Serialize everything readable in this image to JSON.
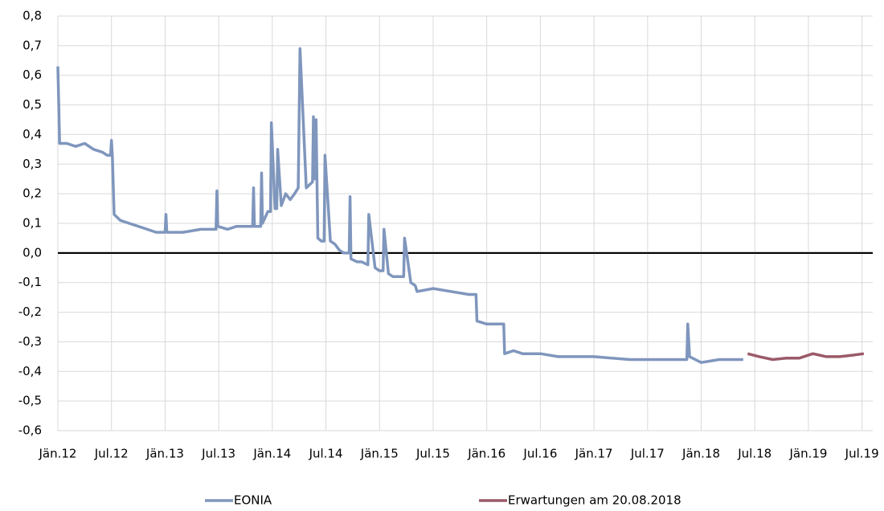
{
  "chart_data": {
    "type": "line",
    "xlim": [
      0,
      91.2
    ],
    "xticks": [
      {
        "value": 0,
        "label": "Jän.12"
      },
      {
        "value": 6,
        "label": "Jul.12"
      },
      {
        "value": 12,
        "label": "Jän.13"
      },
      {
        "value": 18,
        "label": "Jul.13"
      },
      {
        "value": 24,
        "label": "Jän.14"
      },
      {
        "value": 30,
        "label": "Jul.14"
      },
      {
        "value": 36,
        "label": "Jän.15"
      },
      {
        "value": 42,
        "label": "Jul.15"
      },
      {
        "value": 48,
        "label": "Jän.16"
      },
      {
        "value": 54,
        "label": "Jul.16"
      },
      {
        "value": 60,
        "label": "Jän.17"
      },
      {
        "value": 66,
        "label": "Jul.17"
      },
      {
        "value": 72,
        "label": "Jän.18"
      },
      {
        "value": 78,
        "label": "Jul.18"
      },
      {
        "value": 84,
        "label": "Jän.19"
      },
      {
        "value": 90,
        "label": "Jul.19"
      }
    ],
    "ylim": [
      -0.6,
      0.8
    ],
    "yticks": [
      {
        "value": 0.8,
        "label": "0,8"
      },
      {
        "value": 0.7,
        "label": "0,7"
      },
      {
        "value": 0.6,
        "label": "0,6"
      },
      {
        "value": 0.5,
        "label": "0,5"
      },
      {
        "value": 0.4,
        "label": "0,4"
      },
      {
        "value": 0.3,
        "label": "0,3"
      },
      {
        "value": 0.2,
        "label": "0,2"
      },
      {
        "value": 0.1,
        "label": "0,1"
      },
      {
        "value": 0,
        "label": "0,0"
      },
      {
        "value": -0.1,
        "label": "-0,1"
      },
      {
        "value": -0.2,
        "label": "-0,2"
      },
      {
        "value": -0.3,
        "label": "-0,3"
      },
      {
        "value": -0.4,
        "label": "-0,4"
      },
      {
        "value": -0.5,
        "label": "-0,5"
      },
      {
        "value": -0.6,
        "label": "-0,6"
      }
    ],
    "grid": true,
    "series": [
      {
        "name": "EONIA",
        "color": "#7f96bd",
        "x": [
          0,
          0.2,
          1,
          2,
          3,
          4,
          5,
          5.5,
          5.9,
          6.0,
          6.1,
          6.3,
          7,
          8,
          9,
          10,
          11,
          12,
          12.1,
          12.2,
          14,
          16,
          17,
          17.7,
          17.8,
          17.9,
          19,
          20,
          21,
          21.8,
          21.9,
          22.0,
          22.7,
          22.8,
          22.9,
          23.5,
          23.8,
          23.9,
          24.3,
          24.5,
          24.6,
          25,
          25.5,
          26,
          26.5,
          26.9,
          27.1,
          27.8,
          28.5,
          28.6,
          28.8,
          28.9,
          29.1,
          29.5,
          29.8,
          29.9,
          30.5,
          31,
          31.5,
          32,
          32.6,
          32.7,
          32.8,
          33.5,
          34,
          34.7,
          34.8,
          35.5,
          36,
          36.4,
          36.5,
          37,
          37.5,
          38,
          38.7,
          38.8,
          39.5,
          40.0,
          40.2,
          42,
          44,
          46,
          46.8,
          46.9,
          48,
          49,
          49.9,
          50.0,
          51,
          52,
          54,
          56,
          60,
          64,
          68,
          70.4,
          70.5,
          70.7,
          72,
          74,
          76.7
        ],
        "values": [
          0.63,
          0.37,
          0.37,
          0.36,
          0.37,
          0.35,
          0.34,
          0.33,
          0.33,
          0.38,
          0.33,
          0.13,
          0.11,
          0.1,
          0.09,
          0.08,
          0.07,
          0.07,
          0.13,
          0.07,
          0.07,
          0.08,
          0.08,
          0.08,
          0.21,
          0.09,
          0.08,
          0.09,
          0.09,
          0.09,
          0.22,
          0.09,
          0.09,
          0.27,
          0.1,
          0.14,
          0.14,
          0.44,
          0.15,
          0.15,
          0.35,
          0.16,
          0.2,
          0.18,
          0.2,
          0.22,
          0.69,
          0.22,
          0.24,
          0.46,
          0.25,
          0.45,
          0.05,
          0.04,
          0.04,
          0.33,
          0.04,
          0.03,
          0.01,
          0.0,
          0.0,
          0.19,
          -0.02,
          -0.03,
          -0.03,
          -0.04,
          0.13,
          -0.05,
          -0.06,
          -0.06,
          0.08,
          -0.07,
          -0.08,
          -0.08,
          -0.08,
          0.05,
          -0.1,
          -0.11,
          -0.13,
          -0.12,
          -0.13,
          -0.14,
          -0.14,
          -0.23,
          -0.24,
          -0.24,
          -0.24,
          -0.34,
          -0.33,
          -0.34,
          -0.34,
          -0.35,
          -0.35,
          -0.36,
          -0.36,
          -0.36,
          -0.24,
          -0.35,
          -0.37,
          -0.36,
          -0.36
        ]
      },
      {
        "name": "Erwartungen am 20.08.2018",
        "color": "#9b5a68",
        "x": [
          77.2,
          78.5,
          80,
          81.5,
          83,
          84.5,
          86,
          87.5,
          89,
          90.2
        ],
        "values": [
          -0.34,
          -0.35,
          -0.36,
          -0.355,
          -0.355,
          -0.34,
          -0.35,
          -0.35,
          -0.345,
          -0.34
        ]
      }
    ]
  }
}
